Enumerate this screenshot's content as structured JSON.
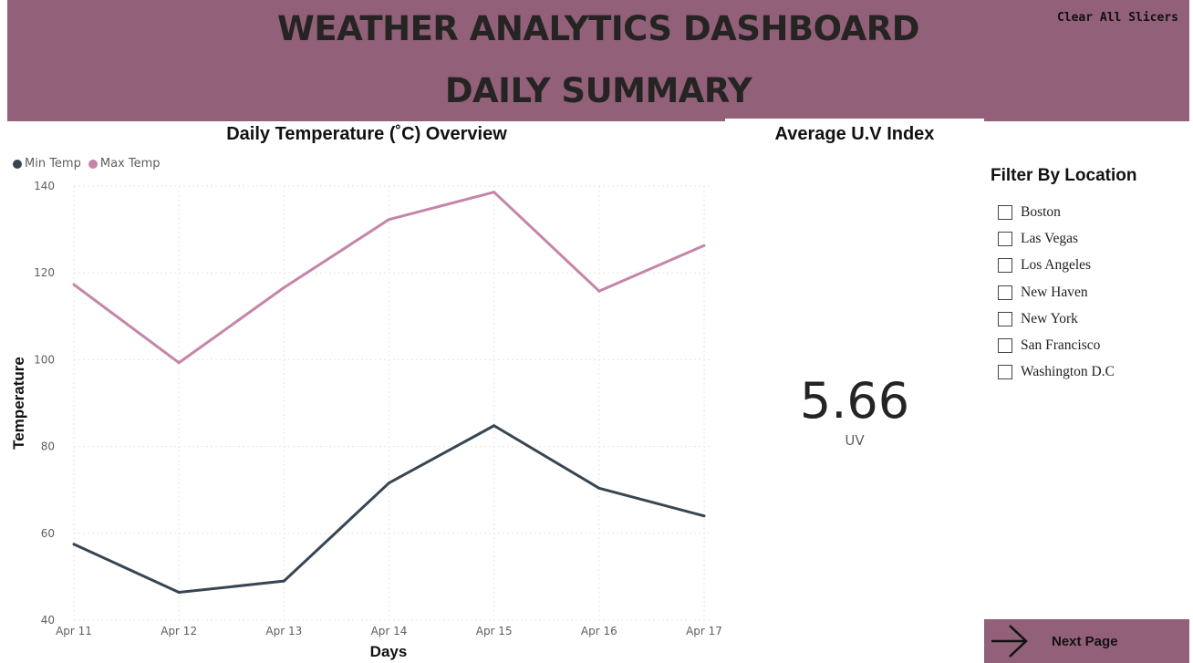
{
  "header": {
    "title_line1": "WEATHER ANALYTICS DASHBOARD",
    "title_line2": "DAILY SUMMARY",
    "clear_label": "Clear All Slicers"
  },
  "chart_data": {
    "type": "line",
    "title": "Daily Temperature (˚C) Overview",
    "xlabel": "Days",
    "ylabel": "Temperature",
    "categories": [
      "Apr 11",
      "Apr 12",
      "Apr 13",
      "Apr 14",
      "Apr 15",
      "Apr 16",
      "Apr 17"
    ],
    "ylim": [
      40,
      140
    ],
    "yticks": [
      40,
      60,
      80,
      100,
      120,
      140
    ],
    "grid": true,
    "legend_position": "top-left",
    "series": [
      {
        "name": "Min Temp",
        "color": "#374652",
        "values": [
          57.5,
          46.4,
          49.0,
          71.6,
          84.8,
          70.4,
          64.0
        ]
      },
      {
        "name": "Max Temp",
        "color": "#C585A9",
        "values": [
          117.3,
          99.3,
          116.6,
          132.3,
          138.6,
          115.8,
          126.3
        ]
      }
    ]
  },
  "uv": {
    "title": "Average U.V Index",
    "value": "5.66",
    "label": "UV"
  },
  "filter": {
    "title": "Filter By Location",
    "locations": [
      "Boston",
      "Las Vegas",
      "Los Angeles",
      "New Haven",
      "New York",
      "San Francisco",
      "Washington D.C"
    ]
  },
  "nav": {
    "next_label": "Next Page",
    "next_icon": "arrow-right-icon"
  }
}
